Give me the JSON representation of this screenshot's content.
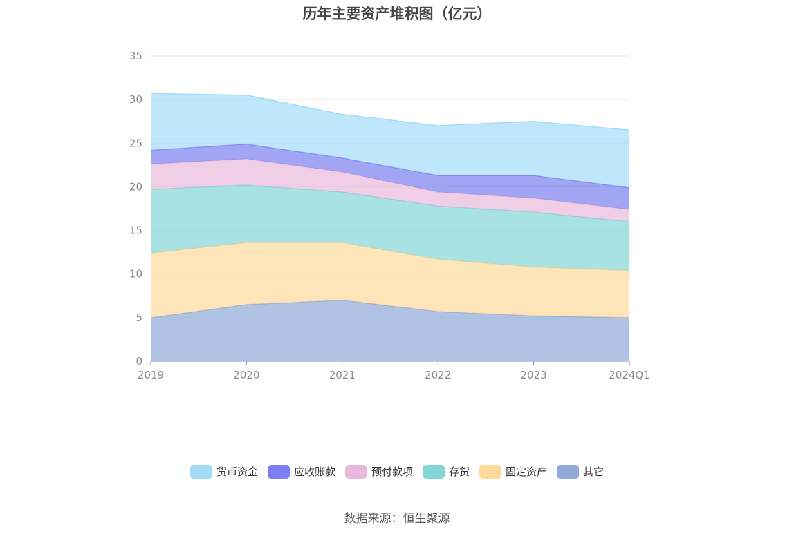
{
  "chart_data": {
    "type": "area",
    "stacked": true,
    "title": "历年主要资产堆积图（亿元）",
    "categories": [
      "2019",
      "2020",
      "2021",
      "2022",
      "2023",
      "2024Q1"
    ],
    "ylim": [
      0,
      35
    ],
    "yticks": [
      0,
      5,
      10,
      15,
      20,
      25,
      30,
      35
    ],
    "grid": true,
    "legend_position": "bottom",
    "series": [
      {
        "name": "其它",
        "color": "#8fa9d8",
        "values": [
          5.0,
          6.5,
          7.0,
          5.7,
          5.2,
          5.0
        ]
      },
      {
        "name": "固定资产",
        "color": "#fdd99b",
        "values": [
          7.4,
          7.1,
          6.6,
          6.0,
          5.6,
          5.4
        ]
      },
      {
        "name": "存货",
        "color": "#84d6d6",
        "values": [
          7.3,
          6.6,
          5.8,
          6.1,
          6.3,
          5.6
        ]
      },
      {
        "name": "预付款项",
        "color": "#e8b9dc",
        "values": [
          2.9,
          3.0,
          2.3,
          1.6,
          1.6,
          1.4
        ]
      },
      {
        "name": "应收账款",
        "color": "#7b7ff0",
        "values": [
          1.6,
          1.7,
          1.6,
          1.9,
          2.6,
          2.5
        ]
      },
      {
        "name": "货币资金",
        "color": "#a4dcf8",
        "values": [
          6.5,
          5.6,
          5.0,
          5.7,
          6.2,
          6.6
        ]
      }
    ],
    "legend_order": [
      "货币资金",
      "应收账款",
      "预付款项",
      "存货",
      "固定资产",
      "其它"
    ]
  },
  "source": "数据来源：恒生聚源"
}
